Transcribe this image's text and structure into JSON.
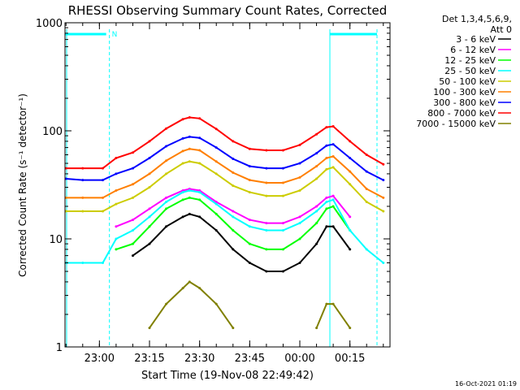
{
  "chart_data": {
    "type": "line",
    "title": "RHESSI Observing Summary Count Rates, Corrected",
    "xlabel": "Start Time (19-Nov-08 22:49:42)",
    "ylabel": "Corrected Count Rate (s⁻¹ detector⁻¹)",
    "yscale": "log",
    "ylim": [
      1,
      1000
    ],
    "xlim": [
      "22:49:42",
      "00:27:00"
    ],
    "x_ticks": [
      "23:00",
      "23:15",
      "23:30",
      "23:45",
      "00:00",
      "00:15"
    ],
    "y_ticks": [
      "1",
      "10",
      "100",
      "1000"
    ],
    "detector_header": [
      "Det 1,3,4,5,6,9,",
      "Att 0"
    ],
    "timestamp": "16-Oct-2021 01:19",
    "night_marker_label": "N",
    "night_bar_color": "#00ffff",
    "legend_position": "right",
    "x": [
      "22:50",
      "22:55",
      "23:01",
      "23:05",
      "23:10",
      "23:15",
      "23:20",
      "23:25",
      "23:27",
      "23:30",
      "23:35",
      "23:40",
      "23:45",
      "23:50",
      "23:55",
      "00:00",
      "00:05",
      "00:08",
      "00:10",
      "00:15",
      "00:20",
      "00:25"
    ],
    "series": [
      {
        "name": "3 - 6 keV",
        "color": "#000000",
        "values": [
          null,
          null,
          null,
          null,
          7,
          9,
          13,
          16,
          17,
          16,
          12,
          8,
          6,
          5,
          5,
          6,
          9,
          13,
          13,
          8,
          null,
          null
        ]
      },
      {
        "name": "6 - 12 keV",
        "color": "#ff00ff",
        "values": [
          null,
          null,
          null,
          13,
          15,
          19,
          24,
          28,
          29,
          28,
          22,
          18,
          15,
          14,
          14,
          16,
          20,
          24,
          25,
          16,
          null,
          null
        ]
      },
      {
        "name": "12 - 25 keV",
        "color": "#00ff00",
        "values": [
          null,
          null,
          null,
          8,
          9,
          13,
          19,
          23,
          24,
          23,
          17,
          12,
          9,
          8,
          8,
          10,
          14,
          19,
          20,
          12,
          null,
          null
        ]
      },
      {
        "name": "25 - 50 keV",
        "color": "#00ffff",
        "values": [
          6,
          6,
          6,
          10,
          12,
          16,
          22,
          27,
          28,
          27,
          21,
          16,
          13,
          12,
          12,
          14,
          18,
          22,
          23,
          12,
          8,
          6
        ]
      },
      {
        "name": "50 - 100 keV",
        "color": "#cccc00",
        "values": [
          18,
          18,
          18,
          21,
          24,
          30,
          40,
          50,
          52,
          50,
          40,
          31,
          27,
          25,
          25,
          28,
          36,
          44,
          46,
          32,
          22,
          18
        ]
      },
      {
        "name": "100 - 300 keV",
        "color": "#ff7f00",
        "values": [
          24,
          24,
          24,
          28,
          32,
          40,
          53,
          65,
          68,
          66,
          52,
          41,
          35,
          33,
          33,
          37,
          47,
          56,
          58,
          42,
          29,
          24
        ]
      },
      {
        "name": "300 - 800 keV",
        "color": "#0000ff",
        "values": [
          36,
          35,
          35,
          40,
          45,
          56,
          72,
          85,
          88,
          86,
          70,
          55,
          47,
          45,
          45,
          50,
          62,
          73,
          75,
          56,
          42,
          35
        ]
      },
      {
        "name": "800 - 7000 keV",
        "color": "#ff0000",
        "values": [
          45,
          45,
          45,
          56,
          63,
          80,
          105,
          128,
          133,
          130,
          104,
          80,
          68,
          66,
          66,
          74,
          93,
          108,
          110,
          80,
          60,
          49
        ]
      },
      {
        "name": "7000 - 15000 keV",
        "color": "#808000",
        "values": [
          null,
          null,
          null,
          null,
          null,
          1.5,
          2.5,
          3.5,
          4,
          3.5,
          2.5,
          1.5,
          null,
          null,
          null,
          null,
          1.5,
          2.5,
          2.5,
          1.5,
          null,
          null
        ]
      }
    ]
  }
}
